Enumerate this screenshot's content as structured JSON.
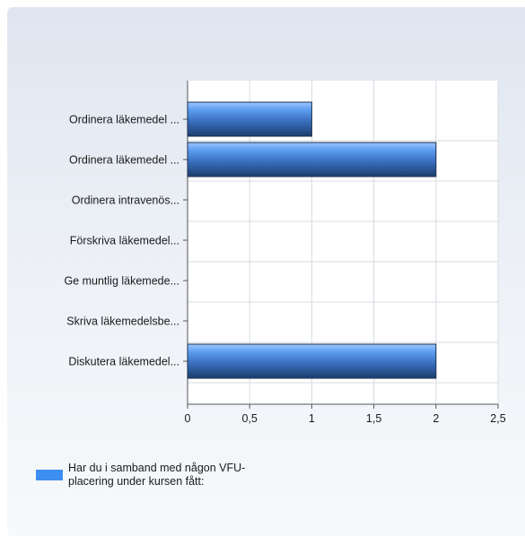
{
  "chart_data": {
    "type": "bar",
    "orientation": "horizontal",
    "categories": [
      "Ordinera läkemedel ...",
      "Ordinera läkemedel ...",
      "Ordinera intravenös...",
      "Förskriva läkemedel...",
      "Ge muntlig läkemede...",
      "Skriva läkemedelsbe...",
      "Diskutera läkemedel..."
    ],
    "series": [
      {
        "name": "Har du i samband med någon VFU-placering under kursen fått:",
        "values": [
          1,
          2,
          0,
          0,
          0,
          0,
          2
        ],
        "color": "#3d8ef0"
      }
    ],
    "x_ticks": [
      "0",
      "0,5",
      "1",
      "1,5",
      "2",
      "2,5"
    ],
    "xlim": [
      0,
      2.5
    ],
    "grid": true,
    "legend_position": "bottom-left"
  }
}
